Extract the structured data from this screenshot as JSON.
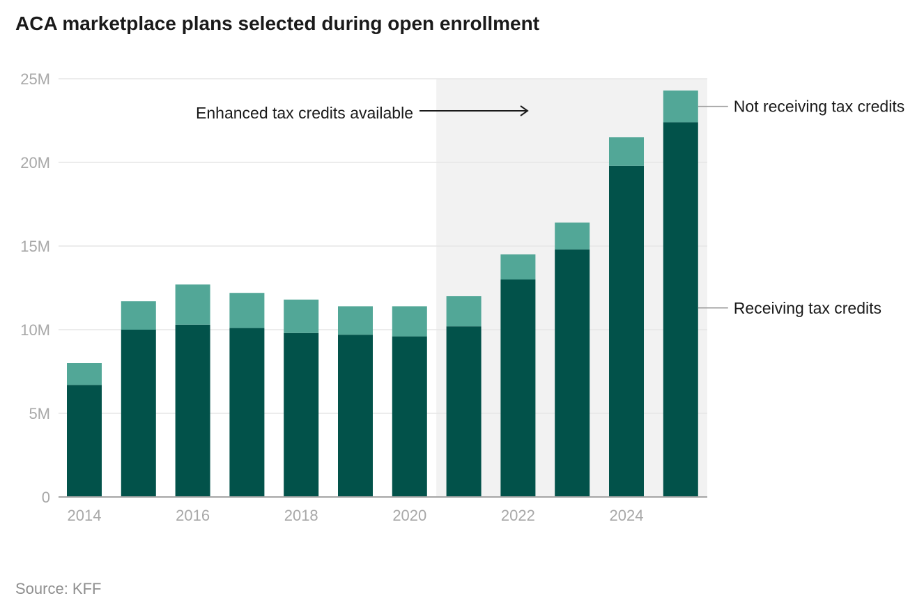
{
  "chart_data": {
    "type": "bar",
    "stacked": true,
    "title": "ACA marketplace plans selected during open enrollment",
    "source": "Source: KFF",
    "categories": [
      "2014",
      "2015",
      "2016",
      "2017",
      "2018",
      "2019",
      "2020",
      "2021",
      "2022",
      "2023",
      "2024",
      "2025"
    ],
    "x_tick_labels": [
      "2014",
      "2016",
      "2018",
      "2020",
      "2022",
      "2024"
    ],
    "series": [
      {
        "name": "Receiving tax credits",
        "color": "#02524a",
        "values": [
          6.7,
          10.0,
          10.3,
          10.1,
          9.8,
          9.7,
          9.6,
          10.2,
          13.0,
          14.8,
          19.8,
          22.4
        ]
      },
      {
        "name": "Not receiving tax credits",
        "color": "#52a797",
        "values": [
          1.3,
          1.7,
          2.4,
          2.1,
          2.0,
          1.7,
          1.8,
          1.8,
          1.5,
          1.6,
          1.7,
          1.9
        ]
      }
    ],
    "y_ticks": [
      {
        "value": 0,
        "label": "0"
      },
      {
        "value": 5,
        "label": "5M"
      },
      {
        "value": 10,
        "label": "10M"
      },
      {
        "value": 15,
        "label": "15M"
      },
      {
        "value": 20,
        "label": "20M"
      },
      {
        "value": 25,
        "label": "25M"
      }
    ],
    "ylim": [
      0,
      25
    ],
    "grid": true,
    "highlight": {
      "label": "Enhanced tax credits available",
      "from_year": "2021",
      "to_year": "2025",
      "color": "#f2f2f2"
    }
  }
}
